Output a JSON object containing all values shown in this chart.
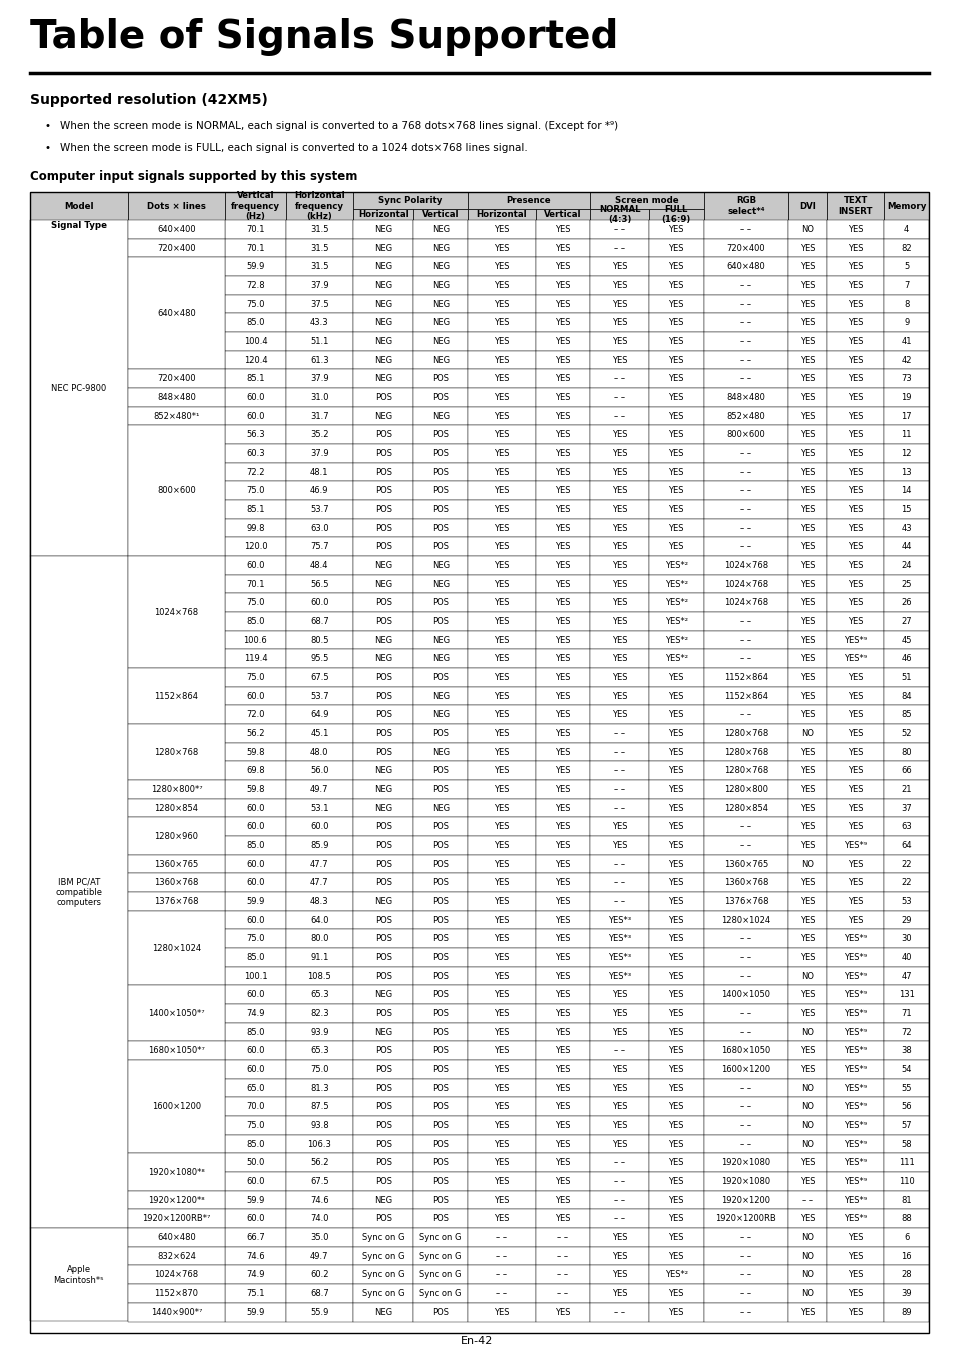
{
  "title": "Table of Signals Supported",
  "subtitle": "Supported resolution (42XM5)",
  "bullets": [
    "When the screen mode is NORMAL, each signal is converted to a 768 dots×768 lines signal. (Except for *⁹)",
    "When the screen mode is FULL, each signal is converted to a 1024 dots×768 lines signal."
  ],
  "subsection": "Computer input signals supported by this system",
  "rows": [
    [
      "NEC PC-9800",
      "640×400",
      "70.1",
      "31.5",
      "NEG",
      "NEG",
      "YES",
      "YES",
      "– –",
      "YES",
      "– –",
      "NO",
      "YES",
      "4"
    ],
    [
      "",
      "720×400",
      "70.1",
      "31.5",
      "NEG",
      "NEG",
      "YES",
      "YES",
      "– –",
      "YES",
      "720×400",
      "YES",
      "YES",
      "82"
    ],
    [
      "",
      "640×480",
      "59.9",
      "31.5",
      "NEG",
      "NEG",
      "YES",
      "YES",
      "YES",
      "YES",
      "640×480",
      "YES",
      "YES",
      "5"
    ],
    [
      "",
      "",
      "72.8",
      "37.9",
      "NEG",
      "NEG",
      "YES",
      "YES",
      "YES",
      "YES",
      "– –",
      "YES",
      "YES",
      "7"
    ],
    [
      "",
      "",
      "75.0",
      "37.5",
      "NEG",
      "NEG",
      "YES",
      "YES",
      "YES",
      "YES",
      "– –",
      "YES",
      "YES",
      "8"
    ],
    [
      "",
      "",
      "85.0",
      "43.3",
      "NEG",
      "NEG",
      "YES",
      "YES",
      "YES",
      "YES",
      "– –",
      "YES",
      "YES",
      "9"
    ],
    [
      "",
      "",
      "100.4",
      "51.1",
      "NEG",
      "NEG",
      "YES",
      "YES",
      "YES",
      "YES",
      "– –",
      "YES",
      "YES",
      "41"
    ],
    [
      "",
      "",
      "120.4",
      "61.3",
      "NEG",
      "NEG",
      "YES",
      "YES",
      "YES",
      "YES",
      "– –",
      "YES",
      "YES",
      "42"
    ],
    [
      "",
      "720×400",
      "85.1",
      "37.9",
      "NEG",
      "POS",
      "YES",
      "YES",
      "– –",
      "YES",
      "– –",
      "YES",
      "YES",
      "73"
    ],
    [
      "",
      "848×480",
      "60.0",
      "31.0",
      "POS",
      "POS",
      "YES",
      "YES",
      "– –",
      "YES",
      "848×480",
      "YES",
      "YES",
      "19"
    ],
    [
      "",
      "852×480*¹",
      "60.0",
      "31.7",
      "NEG",
      "NEG",
      "YES",
      "YES",
      "– –",
      "YES",
      "852×480",
      "YES",
      "YES",
      "17"
    ],
    [
      "",
      "800×600",
      "56.3",
      "35.2",
      "POS",
      "POS",
      "YES",
      "YES",
      "YES",
      "YES",
      "800×600",
      "YES",
      "YES",
      "11"
    ],
    [
      "",
      "",
      "60.3",
      "37.9",
      "POS",
      "POS",
      "YES",
      "YES",
      "YES",
      "YES",
      "– –",
      "YES",
      "YES",
      "12"
    ],
    [
      "",
      "",
      "72.2",
      "48.1",
      "POS",
      "POS",
      "YES",
      "YES",
      "YES",
      "YES",
      "– –",
      "YES",
      "YES",
      "13"
    ],
    [
      "",
      "",
      "75.0",
      "46.9",
      "POS",
      "POS",
      "YES",
      "YES",
      "YES",
      "YES",
      "– –",
      "YES",
      "YES",
      "14"
    ],
    [
      "",
      "",
      "85.1",
      "53.7",
      "POS",
      "POS",
      "YES",
      "YES",
      "YES",
      "YES",
      "– –",
      "YES",
      "YES",
      "15"
    ],
    [
      "",
      "",
      "99.8",
      "63.0",
      "POS",
      "POS",
      "YES",
      "YES",
      "YES",
      "YES",
      "– –",
      "YES",
      "YES",
      "43"
    ],
    [
      "",
      "",
      "120.0",
      "75.7",
      "POS",
      "POS",
      "YES",
      "YES",
      "YES",
      "YES",
      "– –",
      "YES",
      "YES",
      "44"
    ],
    [
      "IBM PC/AT\ncompatible\ncomputers",
      "1024×768",
      "60.0",
      "48.4",
      "NEG",
      "NEG",
      "YES",
      "YES",
      "YES",
      "YES*²",
      "1024×768",
      "YES",
      "YES",
      "24"
    ],
    [
      "",
      "",
      "70.1",
      "56.5",
      "NEG",
      "NEG",
      "YES",
      "YES",
      "YES",
      "YES*²",
      "1024×768",
      "YES",
      "YES",
      "25"
    ],
    [
      "",
      "",
      "75.0",
      "60.0",
      "POS",
      "POS",
      "YES",
      "YES",
      "YES",
      "YES*²",
      "1024×768",
      "YES",
      "YES",
      "26"
    ],
    [
      "",
      "",
      "85.0",
      "68.7",
      "POS",
      "POS",
      "YES",
      "YES",
      "YES",
      "YES*²",
      "– –",
      "YES",
      "YES",
      "27"
    ],
    [
      "",
      "",
      "100.6",
      "80.5",
      "NEG",
      "NEG",
      "YES",
      "YES",
      "YES",
      "YES*²",
      "– –",
      "YES",
      "YES*⁹",
      "45"
    ],
    [
      "",
      "",
      "119.4",
      "95.5",
      "NEG",
      "NEG",
      "YES",
      "YES",
      "YES",
      "YES*²",
      "– –",
      "YES",
      "YES*⁹",
      "46"
    ],
    [
      "",
      "1152×864",
      "75.0",
      "67.5",
      "POS",
      "POS",
      "YES",
      "YES",
      "YES",
      "YES",
      "1152×864",
      "YES",
      "YES",
      "51"
    ],
    [
      "",
      "",
      "60.0",
      "53.7",
      "POS",
      "NEG",
      "YES",
      "YES",
      "YES",
      "YES",
      "1152×864",
      "YES",
      "YES",
      "84"
    ],
    [
      "",
      "",
      "72.0",
      "64.9",
      "POS",
      "NEG",
      "YES",
      "YES",
      "YES",
      "YES",
      "– –",
      "YES",
      "YES",
      "85"
    ],
    [
      "",
      "1280×768",
      "56.2",
      "45.1",
      "POS",
      "POS",
      "YES",
      "YES",
      "– –",
      "YES",
      "1280×768",
      "NO",
      "YES",
      "52"
    ],
    [
      "",
      "",
      "59.8",
      "48.0",
      "POS",
      "NEG",
      "YES",
      "YES",
      "– –",
      "YES",
      "1280×768",
      "YES",
      "YES",
      "80"
    ],
    [
      "",
      "",
      "69.8",
      "56.0",
      "NEG",
      "POS",
      "YES",
      "YES",
      "– –",
      "YES",
      "1280×768",
      "YES",
      "YES",
      "66"
    ],
    [
      "",
      "1280×800*⁷",
      "59.8",
      "49.7",
      "NEG",
      "POS",
      "YES",
      "YES",
      "– –",
      "YES",
      "1280×800",
      "YES",
      "YES",
      "21"
    ],
    [
      "",
      "1280×854",
      "60.0",
      "53.1",
      "NEG",
      "NEG",
      "YES",
      "YES",
      "– –",
      "YES",
      "1280×854",
      "YES",
      "YES",
      "37"
    ],
    [
      "",
      "1280×960",
      "60.0",
      "60.0",
      "POS",
      "POS",
      "YES",
      "YES",
      "YES",
      "YES",
      "– –",
      "YES",
      "YES",
      "63"
    ],
    [
      "",
      "",
      "85.0",
      "85.9",
      "POS",
      "POS",
      "YES",
      "YES",
      "YES",
      "YES",
      "– –",
      "YES",
      "YES*⁹",
      "64"
    ],
    [
      "",
      "1360×765",
      "60.0",
      "47.7",
      "POS",
      "POS",
      "YES",
      "YES",
      "– –",
      "YES",
      "1360×765",
      "NO",
      "YES",
      "22"
    ],
    [
      "",
      "1360×768",
      "60.0",
      "47.7",
      "POS",
      "POS",
      "YES",
      "YES",
      "– –",
      "YES",
      "1360×768",
      "YES",
      "YES",
      "22"
    ],
    [
      "",
      "1376×768",
      "59.9",
      "48.3",
      "NEG",
      "POS",
      "YES",
      "YES",
      "– –",
      "YES",
      "1376×768",
      "YES",
      "YES",
      "53"
    ],
    [
      "",
      "1280×1024",
      "60.0",
      "64.0",
      "POS",
      "POS",
      "YES",
      "YES",
      "YES*³",
      "YES",
      "1280×1024",
      "YES",
      "YES",
      "29"
    ],
    [
      "",
      "",
      "75.0",
      "80.0",
      "POS",
      "POS",
      "YES",
      "YES",
      "YES*³",
      "YES",
      "– –",
      "YES",
      "YES*⁹",
      "30"
    ],
    [
      "",
      "",
      "85.0",
      "91.1",
      "POS",
      "POS",
      "YES",
      "YES",
      "YES*³",
      "YES",
      "– –",
      "YES",
      "YES*⁹",
      "40"
    ],
    [
      "",
      "",
      "100.1",
      "108.5",
      "POS",
      "POS",
      "YES",
      "YES",
      "YES*³",
      "YES",
      "– –",
      "NO",
      "YES*⁹",
      "47"
    ],
    [
      "",
      "1400×1050*⁷",
      "60.0",
      "65.3",
      "NEG",
      "POS",
      "YES",
      "YES",
      "YES",
      "YES",
      "1400×1050",
      "YES",
      "YES*⁹",
      "131"
    ],
    [
      "",
      "",
      "74.9",
      "82.3",
      "POS",
      "POS",
      "YES",
      "YES",
      "YES",
      "YES",
      "– –",
      "YES",
      "YES*⁹",
      "71"
    ],
    [
      "",
      "",
      "85.0",
      "93.9",
      "NEG",
      "POS",
      "YES",
      "YES",
      "YES",
      "YES",
      "– –",
      "NO",
      "YES*⁹",
      "72"
    ],
    [
      "",
      "1680×1050*⁷",
      "60.0",
      "65.3",
      "POS",
      "POS",
      "YES",
      "YES",
      "– –",
      "YES",
      "1680×1050",
      "YES",
      "YES*⁹",
      "38"
    ],
    [
      "",
      "1600×1200",
      "60.0",
      "75.0",
      "POS",
      "POS",
      "YES",
      "YES",
      "YES",
      "YES",
      "1600×1200",
      "YES",
      "YES*⁹",
      "54"
    ],
    [
      "",
      "",
      "65.0",
      "81.3",
      "POS",
      "POS",
      "YES",
      "YES",
      "YES",
      "YES",
      "– –",
      "NO",
      "YES*⁹",
      "55"
    ],
    [
      "",
      "",
      "70.0",
      "87.5",
      "POS",
      "POS",
      "YES",
      "YES",
      "YES",
      "YES",
      "– –",
      "NO",
      "YES*⁹",
      "56"
    ],
    [
      "",
      "",
      "75.0",
      "93.8",
      "POS",
      "POS",
      "YES",
      "YES",
      "YES",
      "YES",
      "– –",
      "NO",
      "YES*⁹",
      "57"
    ],
    [
      "",
      "",
      "85.0",
      "106.3",
      "POS",
      "POS",
      "YES",
      "YES",
      "YES",
      "YES",
      "– –",
      "NO",
      "YES*⁹",
      "58"
    ],
    [
      "",
      "1920×1080*⁸",
      "50.0",
      "56.2",
      "POS",
      "POS",
      "YES",
      "YES",
      "– –",
      "YES",
      "1920×1080",
      "YES",
      "YES*⁹",
      "111"
    ],
    [
      "",
      "",
      "60.0",
      "67.5",
      "POS",
      "POS",
      "YES",
      "YES",
      "– –",
      "YES",
      "1920×1080",
      "YES",
      "YES*⁹",
      "110"
    ],
    [
      "",
      "1920×1200*⁸",
      "59.9",
      "74.6",
      "NEG",
      "POS",
      "YES",
      "YES",
      "– –",
      "YES",
      "1920×1200",
      "– –",
      "YES*⁹",
      "81"
    ],
    [
      "",
      "1920×1200RB*⁷",
      "60.0",
      "74.0",
      "POS",
      "POS",
      "YES",
      "YES",
      "– –",
      "YES",
      "1920×1200RB",
      "YES",
      "YES*⁹",
      "88"
    ],
    [
      "Apple\nMacintosh*⁵",
      "640×480",
      "66.7",
      "35.0",
      "Sync on G",
      "Sync on G",
      "– –",
      "– –",
      "YES",
      "YES",
      "– –",
      "NO",
      "YES",
      "6"
    ],
    [
      "",
      "832×624",
      "74.6",
      "49.7",
      "Sync on G",
      "Sync on G",
      "– –",
      "– –",
      "YES",
      "YES",
      "– –",
      "NO",
      "YES",
      "16"
    ],
    [
      "",
      "1024×768",
      "74.9",
      "60.2",
      "Sync on G",
      "Sync on G",
      "– –",
      "– –",
      "YES",
      "YES*²",
      "– –",
      "NO",
      "YES",
      "28"
    ],
    [
      "",
      "1152×870",
      "75.1",
      "68.7",
      "Sync on G",
      "Sync on G",
      "– –",
      "– –",
      "YES",
      "YES",
      "– –",
      "NO",
      "YES",
      "39"
    ],
    [
      "",
      "1440×900*⁷",
      "59.9",
      "55.9",
      "NEG",
      "POS",
      "YES",
      "YES",
      "– –",
      "YES",
      "– –",
      "YES",
      "YES",
      "89"
    ]
  ],
  "col_widths_pt": [
    68,
    68,
    42,
    47,
    42,
    38,
    47,
    38,
    41,
    38,
    59,
    27,
    40,
    31
  ],
  "header_bg": "#c8c8c8",
  "border_color": "#000000",
  "text_color": "#000000",
  "font_size_data": 6.0,
  "font_size_header": 6.2,
  "font_size_title": 28,
  "font_size_subtitle": 10,
  "font_size_subsection": 8.5,
  "font_size_bullets": 7.5,
  "page_number": "En-42"
}
